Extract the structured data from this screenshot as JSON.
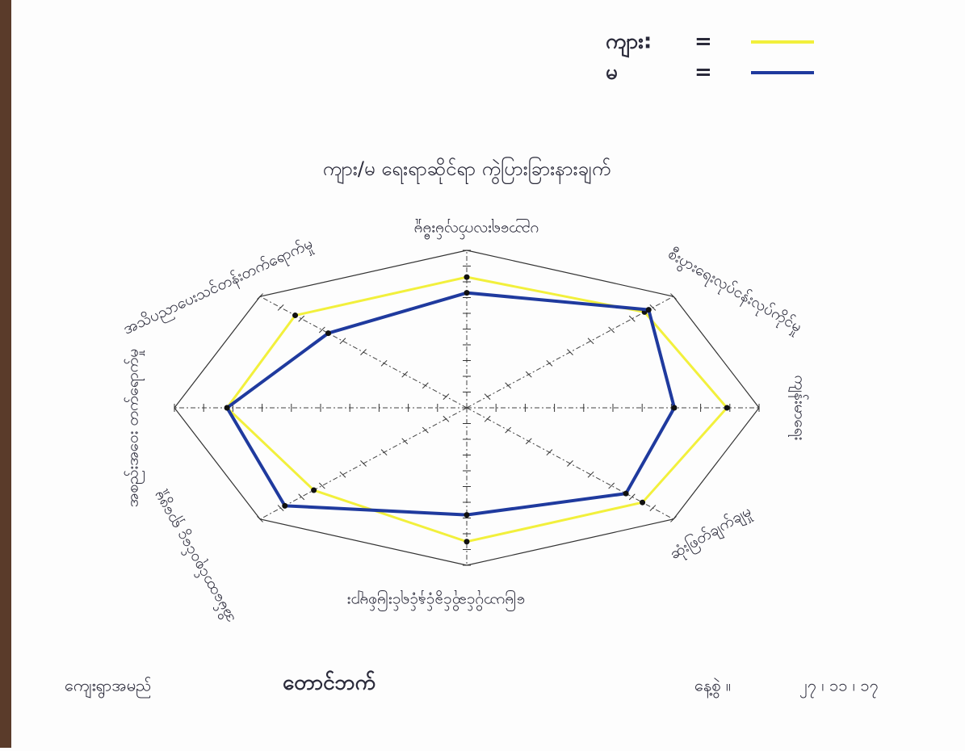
{
  "chart_data": {
    "type": "radar",
    "title": "ကျား/မ ရေးရာဆိုင်ရာ ကွဲပြားခြားနားချက်",
    "categories": [
      "ပညာရေးလက်လှမ်းမီမှု",
      "စီးပွားရေးလုပ်ငန်းလုပ်ကိုင်မှု",
      "ကျန်းမာရေး",
      "ဆုံးဖြတ်ချက်ချမှု",
      "မြေယာပိုင်ဆိုင်ခွင့်နှင့်ရင်းမြစ်များ",
      "အိမ်ထောင်စုဝင်ငွေ ရှာဖွေမှု",
      "အစည်းအဝေး တက်ရောက်မှု",
      "အသိပညာပေးသင်တန်းတက်ရောက်မှု"
    ],
    "series": [
      {
        "name": "ကျား:",
        "color": "#f2f03c",
        "values": [
          8.3,
          8.6,
          8.9,
          8.5,
          8.5,
          7.4,
          8.2,
          8.3
        ]
      },
      {
        "name": "မ",
        "color": "#1f3a9e",
        "values": [
          7.3,
          8.8,
          7.1,
          7.7,
          6.8,
          8.8,
          8.2,
          6.7
        ]
      }
    ],
    "legend_separator": "=",
    "legend": "top-right",
    "rlim": [
      0,
      10
    ],
    "rticks": [
      1,
      2,
      3,
      4,
      5,
      6,
      7,
      8,
      9,
      10
    ]
  },
  "footer": {
    "village_label": "ကျေးရွာအမည်",
    "village": "တောင်ဘက်",
    "date_label": "နေ့စွဲ ။",
    "date": "၂၇ ၊ ၁၁ ၊ ၁၇"
  }
}
